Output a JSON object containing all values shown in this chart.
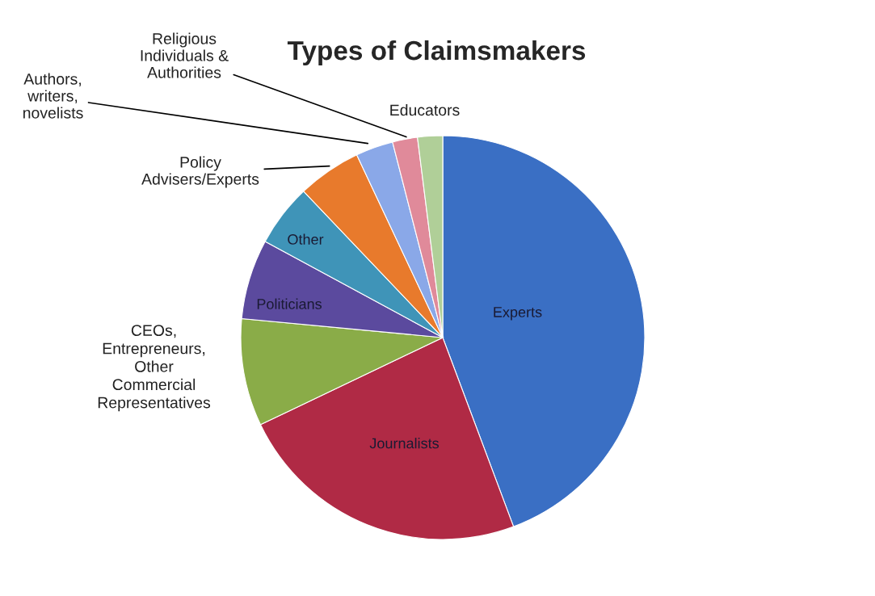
{
  "chart_data": {
    "type": "pie",
    "title": "Types of Claimsmakers",
    "categories": [
      "Experts",
      "Journalists",
      "CEOs,\nEntrepreneurs,\nOther\nCommercial\nRepresentatives",
      "Politicians",
      "Other",
      "Policy\nAdvisers/Experts",
      "Authors,\nwriters,\nnovelists",
      "Religious\nIndividuals &\nAuthorities",
      "Educators"
    ],
    "values": [
      44.3,
      23.6,
      8.6,
      6.4,
      5.0,
      5.1,
      3.0,
      2.0,
      2.0
    ],
    "colors": [
      "#3a6fc4",
      "#b02a45",
      "#8aac48",
      "#5b4a9e",
      "#3f94b8",
      "#e87a2c",
      "#8aa8e8",
      "#e08a9a",
      "#b0cf98"
    ]
  }
}
